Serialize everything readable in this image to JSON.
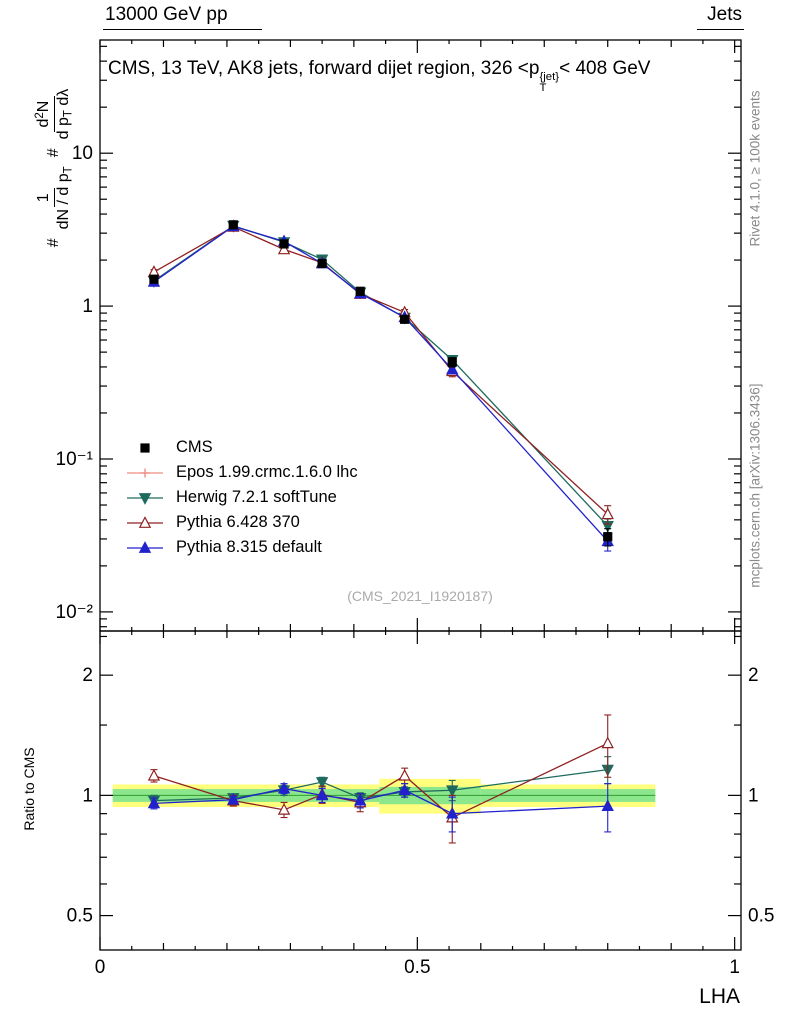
{
  "header": {
    "left": "13000 GeV pp",
    "right": "Jets"
  },
  "title": {
    "pre": "CMS, 13 TeV, AK8 jets, forward dijet region, 326 <p",
    "sup": "{jet}",
    "sub": "T",
    "post": "< 408 GeV"
  },
  "ylabel": {
    "hash1": "#",
    "frac1": {
      "num": "1",
      "den_pre": "dN / d p",
      "den_sub": "T"
    },
    "hash2": "#",
    "frac2": {
      "num_pre": "d",
      "num_sup": "2",
      "num_post": "N",
      "den_pre": "d p",
      "den_sub": "T",
      "den_post": " dλ"
    }
  },
  "ratio_ylabel": "Ratio to CMS",
  "xlabel": "LHA",
  "watermark": "(CMS_2021_I1920187)",
  "side_notes": {
    "top": "Rivet 4.1.0, ≥ 100k events",
    "bottom": "mcplots.cern.ch [arXiv:1306.3436]"
  },
  "legend": {
    "entries": [
      {
        "label": "CMS",
        "color": "#000000",
        "marker": "square",
        "fill": true,
        "line": false
      },
      {
        "label": "Epos 1.99.crmc.1.6.0 lhc",
        "color": "#ee8e82",
        "marker": "plus",
        "fill": false,
        "line": true
      },
      {
        "label": "Herwig 7.2.1 softTune",
        "color": "#1e6b5e",
        "marker": "triangle-down",
        "fill": true,
        "line": true
      },
      {
        "label": "Pythia 6.428 370",
        "color": "#8f2121",
        "marker": "triangle-up",
        "fill": false,
        "line": true
      },
      {
        "label": "Pythia 8.315 default",
        "color": "#2222cc",
        "marker": "triangle-up",
        "fill": true,
        "line": true
      }
    ]
  },
  "chart_data": {
    "type": "line",
    "title": "CMS, 13 TeV, AK8 jets, forward dijet region, 326 < pT{jet} < 408 GeV",
    "xlabel": "LHA",
    "x": [
      0.085,
      0.21,
      0.29,
      0.35,
      0.41,
      0.48,
      0.555,
      0.8
    ],
    "axes": {
      "xlim": [
        0,
        1.01
      ],
      "xticks": [
        {
          "v": 0,
          "label": "0"
        },
        {
          "v": 0.5,
          "label": "0.5"
        },
        {
          "v": 1,
          "label": "1"
        }
      ]
    },
    "main": {
      "yscale": "log",
      "ylim": [
        0.0075,
        55
      ],
      "yticks": [
        {
          "v": 10,
          "label": "10"
        },
        {
          "v": 1,
          "label": "1"
        },
        {
          "v": 0.1,
          "label": "10⁻¹"
        },
        {
          "v": 0.01,
          "label": "10⁻²"
        }
      ],
      "series": [
        {
          "name": "Herwig 7.2.1 softTune",
          "color": "#1e6b5e",
          "marker": "triangle-down",
          "fill": true,
          "line": true,
          "y": [
            1.46,
            3.35,
            2.62,
            2.02,
            1.23,
            0.84,
            0.445,
            0.0365
          ],
          "yerr": [
            0.04,
            0.06,
            0.05,
            0.04,
            0.03,
            0.02,
            0.02,
            0.004
          ]
        },
        {
          "name": "Pythia 6.428 370",
          "color": "#8f2121",
          "marker": "triangle-up",
          "fill": false,
          "line": true,
          "y": [
            1.67,
            3.3,
            2.35,
            1.92,
            1.2,
            0.91,
            0.375,
            0.0435
          ],
          "yerr": [
            0.06,
            0.07,
            0.06,
            0.05,
            0.04,
            0.04,
            0.03,
            0.006
          ]
        },
        {
          "name": "Pythia 8.315 default",
          "color": "#2222cc",
          "marker": "triangle-up",
          "fill": true,
          "line": true,
          "y": [
            1.44,
            3.33,
            2.65,
            1.9,
            1.21,
            0.845,
            0.385,
            0.029
          ],
          "yerr": [
            0.04,
            0.06,
            0.05,
            0.04,
            0.03,
            0.02,
            0.02,
            0.004
          ]
        },
        {
          "name": "CMS",
          "color": "#000000",
          "marker": "square",
          "fill": true,
          "line": false,
          "y": [
            1.5,
            3.4,
            2.55,
            1.9,
            1.25,
            0.82,
            0.43,
            0.031
          ],
          "yerr": [
            0.06,
            0.09,
            0.08,
            0.06,
            0.05,
            0.04,
            0.03,
            0.004
          ]
        }
      ]
    },
    "ratio": {
      "yscale": "log",
      "ylim": [
        0.41,
        2.58
      ],
      "yticks": [
        {
          "v": 0.5,
          "label": "0.5"
        },
        {
          "v": 1,
          "label": "1"
        },
        {
          "v": 2,
          "label": "2"
        }
      ],
      "yminor": [
        0.6,
        0.7,
        0.8,
        0.9,
        1.5,
        2.5
      ],
      "bands": {
        "yellow": {
          "color": "#ffff7d",
          "segments": [
            {
              "x0": 0.02,
              "x1": 0.44,
              "lo": 0.935,
              "hi": 1.065
            },
            {
              "x0": 0.44,
              "x1": 0.6,
              "lo": 0.9,
              "hi": 1.1
            },
            {
              "x0": 0.6,
              "x1": 0.875,
              "lo": 0.935,
              "hi": 1.065
            }
          ]
        },
        "green": {
          "color": "#8ce68c",
          "segments": [
            {
              "x0": 0.02,
              "x1": 0.44,
              "lo": 0.963,
              "hi": 1.037
            },
            {
              "x0": 0.44,
              "x1": 0.6,
              "lo": 0.95,
              "hi": 1.05
            },
            {
              "x0": 0.6,
              "x1": 0.875,
              "lo": 0.963,
              "hi": 1.037
            }
          ]
        },
        "centerline": {
          "color": "#2e9e2e",
          "y": 1,
          "x0": 0.02,
          "x1": 0.875
        }
      },
      "series": [
        {
          "name": "Herwig 7.2.1 softTune",
          "color": "#1e6b5e",
          "marker": "triangle-down",
          "fill": true,
          "line": true,
          "y": [
            0.97,
            0.985,
            1.03,
            1.08,
            0.985,
            1.02,
            1.03,
            1.16
          ],
          "yerr": [
            0.03,
            0.02,
            0.03,
            0.03,
            0.03,
            0.03,
            0.06,
            0.09
          ]
        },
        {
          "name": "Pythia 6.428 370",
          "color": "#8f2121",
          "marker": "triangle-up",
          "fill": false,
          "line": true,
          "y": [
            1.12,
            0.97,
            0.92,
            1.005,
            0.96,
            1.12,
            0.88,
            1.35
          ],
          "yerr": [
            0.04,
            0.03,
            0.04,
            0.05,
            0.05,
            0.05,
            0.12,
            0.24
          ]
        },
        {
          "name": "Pythia 8.315 default",
          "color": "#2222cc",
          "marker": "triangle-up",
          "fill": true,
          "line": true,
          "y": [
            0.955,
            0.975,
            1.04,
            1.0,
            0.97,
            1.03,
            0.9,
            0.94
          ],
          "yerr": [
            0.03,
            0.02,
            0.03,
            0.04,
            0.04,
            0.04,
            0.09,
            0.13
          ]
        }
      ]
    }
  }
}
